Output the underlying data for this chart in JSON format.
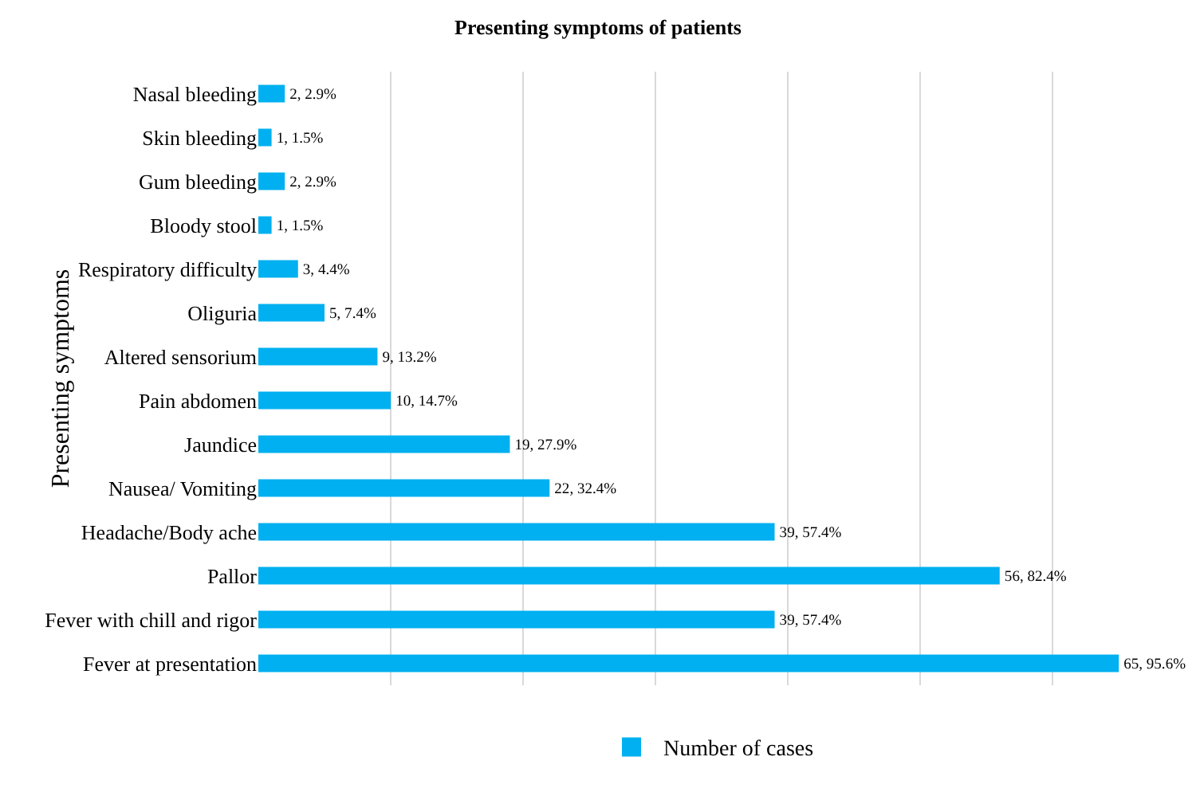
{
  "chart_data": {
    "type": "bar",
    "orientation": "horizontal",
    "title": "Presenting symptoms of patients",
    "ylabel": "Presenting symptoms",
    "categories": [
      "Nasal bleeding",
      "Skin bleeding",
      "Gum bleeding",
      "Bloody stool",
      "Respiratory difficulty",
      "Oliguria",
      "Altered sensorium",
      "Pain abdomen",
      "Jaundice",
      "Nausea/ Vomiting",
      "Headache/Body ache",
      "Pallor",
      "Fever with chill and rigor",
      "Fever at presentation"
    ],
    "series": [
      {
        "name": "Number of cases",
        "color": "#00b0f0",
        "values": [
          2,
          1,
          2,
          1,
          3,
          5,
          9,
          10,
          19,
          22,
          39,
          56,
          39,
          65
        ],
        "value_labels": [
          "2, 2.9%",
          "1, 1.5%",
          "2, 2.9%",
          "1, 1.5%",
          "3, 4.4%",
          "5, 7.4%",
          "9, 13.2%",
          "10, 14.7%",
          "19, 27.9%",
          "22, 32.4%",
          "39, 57.4%",
          "56, 82.4%",
          "39, 57.4%",
          "65, 95.6%"
        ]
      }
    ],
    "tick_labels": "y",
    "grid": "x",
    "legend": "bottom"
  }
}
